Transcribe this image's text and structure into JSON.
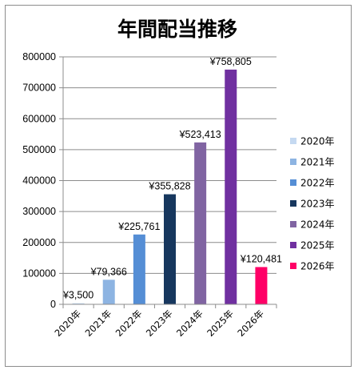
{
  "chart_data": {
    "type": "bar",
    "title": "年間配当推移",
    "xlabel": "",
    "ylabel": "",
    "categories": [
      "2020年",
      "2021年",
      "2022年",
      "2023年",
      "2024年",
      "2025年",
      "2026年"
    ],
    "values": [
      3500,
      79366,
      225761,
      355828,
      523413,
      758805,
      120481
    ],
    "data_labels": [
      "¥3,500",
      "¥79,366",
      "¥225,761",
      "¥355,828",
      "¥523,413",
      "¥758,805",
      "¥120,481"
    ],
    "colors": [
      "#c5d9f1",
      "#8db4e2",
      "#558ed5",
      "#17375e",
      "#8064a2",
      "#7030a0",
      "#ff0066"
    ],
    "ylim": [
      0,
      800000
    ],
    "yticks": [
      0,
      100000,
      200000,
      300000,
      400000,
      500000,
      600000,
      700000,
      800000
    ],
    "ytick_labels": [
      "0",
      "100000",
      "200000",
      "300000",
      "400000",
      "500000",
      "600000",
      "700000",
      "800000"
    ],
    "grid": true,
    "legend_position": "right",
    "legend": [
      "2020年",
      "2021年",
      "2022年",
      "2023年",
      "2024年",
      "2025年",
      "2026年"
    ]
  }
}
